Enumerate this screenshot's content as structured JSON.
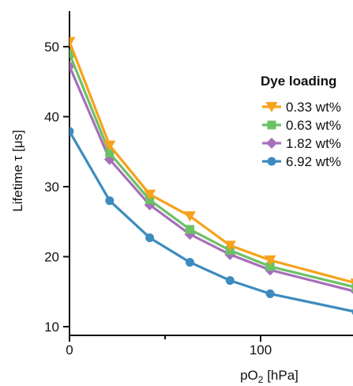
{
  "chart_data": {
    "type": "line",
    "xlabel": "pO",
    "xlabel_sub": "2",
    "xlabel_unit": " [hPa]",
    "ylabel": "Lifetime τ [μs]",
    "xlim": [
      0,
      145
    ],
    "ylim": [
      9,
      55
    ],
    "x_ticks": [
      0,
      100
    ],
    "x_minor_ticks": [
      50
    ],
    "y_ticks": [
      10,
      20,
      30,
      40,
      50
    ],
    "grid": false,
    "legend_position": "right",
    "legend_title": "Dye loading",
    "x": [
      0,
      21,
      42,
      63,
      84,
      105,
      150
    ],
    "series": [
      {
        "name": "0.33 wt%",
        "marker": "triangle-down",
        "color": "#f7a21b",
        "values": [
          50.7,
          35.9,
          28.9,
          25.8,
          21.6,
          19.5,
          16.2
        ]
      },
      {
        "name": "0.63 wt%",
        "marker": "square",
        "color": "#6cc164",
        "values": [
          49.0,
          34.8,
          28.1,
          23.9,
          20.9,
          18.6,
          15.6
        ]
      },
      {
        "name": "1.82 wt%",
        "marker": "diamond",
        "color": "#a66fba",
        "values": [
          47.2,
          33.9,
          27.4,
          23.2,
          20.3,
          18.1,
          15.0
        ]
      },
      {
        "name": "6.92 wt%",
        "marker": "circle",
        "color": "#3d8bbf",
        "values": [
          37.9,
          28.0,
          22.7,
          19.2,
          16.6,
          14.7,
          12.1
        ]
      }
    ]
  }
}
